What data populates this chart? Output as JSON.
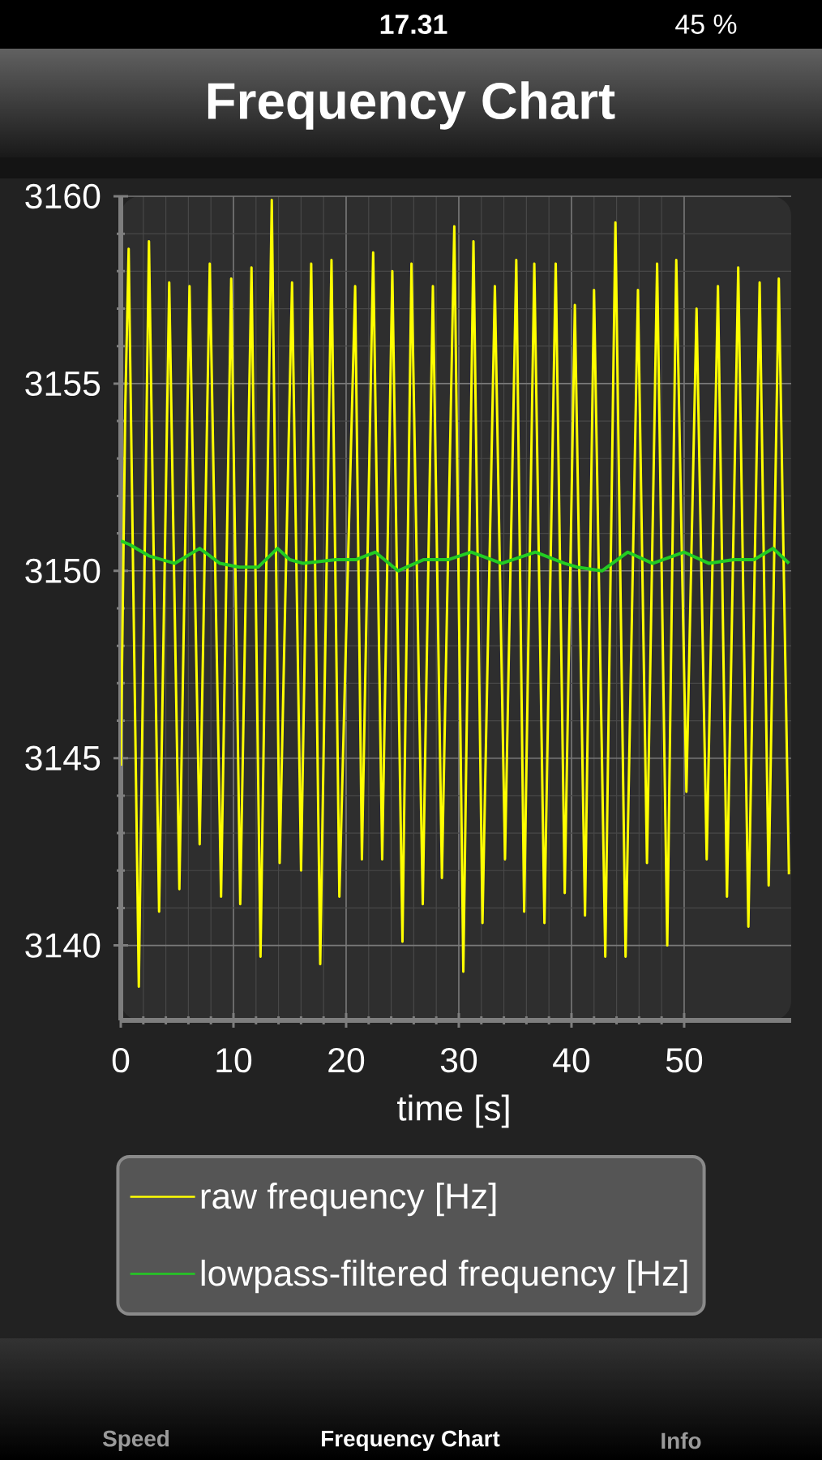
{
  "chart_data": {
    "type": "line",
    "title": "Frequency Chart",
    "xlabel": "time [s]",
    "annotations": [
      "17.31",
      "45 %",
      "Speed",
      "Frequency Chart",
      "Info"
    ],
    "xlim": [
      0,
      59.5
    ],
    "xticks": [
      0,
      10,
      20,
      30,
      40,
      50
    ],
    "ylim": [
      3138,
      3160
    ],
    "yticks": [
      3140,
      3145,
      3150,
      3155,
      3160
    ],
    "grid": true,
    "legend": "bottom",
    "series": [
      {
        "name": "raw frequency [Hz]",
        "color": "#ffff00",
        "x": [
          0.0,
          0.4,
          0.7,
          1.6,
          2.5,
          3.4,
          4.3,
          5.2,
          6.1,
          7.0,
          7.9,
          8.9,
          9.8,
          10.6,
          11.6,
          12.4,
          13.4,
          14.1,
          15.2,
          16.0,
          16.9,
          17.7,
          18.7,
          19.4,
          20.8,
          21.4,
          22.4,
          23.2,
          24.1,
          25.0,
          25.8,
          26.8,
          27.7,
          28.5,
          29.6,
          30.4,
          31.3,
          32.1,
          33.2,
          34.1,
          35.1,
          35.8,
          36.7,
          37.6,
          38.6,
          39.4,
          40.3,
          41.2,
          42.0,
          43.0,
          43.9,
          44.8,
          45.9,
          46.7,
          47.6,
          48.5,
          49.3,
          50.2,
          51.1,
          52.0,
          53.0,
          53.8,
          54.8,
          55.7,
          56.7,
          57.5,
          58.4,
          59.3
        ],
        "values": [
          3144.8,
          3154.4,
          3158.6,
          3138.9,
          3158.8,
          3140.9,
          3157.7,
          3141.5,
          3157.6,
          3142.7,
          3158.2,
          3141.3,
          3157.8,
          3141.1,
          3158.1,
          3139.7,
          3159.9,
          3142.2,
          3157.7,
          3142.0,
          3158.2,
          3139.5,
          3158.3,
          3141.3,
          3157.6,
          3142.3,
          3158.5,
          3142.3,
          3158.0,
          3140.1,
          3158.2,
          3141.1,
          3157.6,
          3141.8,
          3159.2,
          3139.3,
          3158.8,
          3140.6,
          3157.6,
          3142.3,
          3158.3,
          3140.9,
          3158.2,
          3140.6,
          3158.2,
          3141.4,
          3157.1,
          3140.8,
          3157.5,
          3139.7,
          3159.3,
          3139.7,
          3157.5,
          3142.2,
          3158.2,
          3140.0,
          3158.3,
          3144.1,
          3157.0,
          3142.3,
          3157.6,
          3141.3,
          3158.1,
          3140.5,
          3157.7,
          3141.6,
          3157.8,
          3141.9
        ]
      },
      {
        "name": "lowpass-filtered frequency [Hz]",
        "color": "#22cc22",
        "x": [
          0.0,
          0.8,
          2.5,
          4.8,
          7.0,
          8.8,
          10.5,
          12.2,
          13.9,
          15.0,
          16.2,
          19.1,
          20.9,
          22.6,
          24.6,
          26.9,
          29.1,
          31.1,
          33.8,
          36.8,
          39.4,
          40.5,
          42.7,
          45.0,
          47.2,
          50.0,
          52.2,
          54.4,
          56.2,
          57.9,
          59.3
        ],
        "values": [
          3150.8,
          3150.7,
          3150.4,
          3150.2,
          3150.6,
          3150.2,
          3150.1,
          3150.1,
          3150.6,
          3150.3,
          3150.2,
          3150.3,
          3150.3,
          3150.5,
          3150.0,
          3150.3,
          3150.3,
          3150.5,
          3150.2,
          3150.5,
          3150.2,
          3150.1,
          3150.0,
          3150.5,
          3150.2,
          3150.5,
          3150.2,
          3150.3,
          3150.3,
          3150.6,
          3150.2
        ]
      }
    ]
  }
}
